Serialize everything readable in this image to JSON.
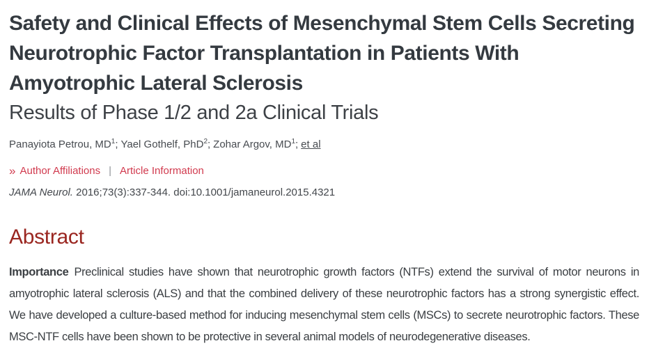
{
  "page": {
    "title": "Safety and Clinical Effects of Mesenchymal Stem Cells Secreting Neurotrophic Factor Transplantation in Patients With Amyotrophic Lateral Sclerosis",
    "subtitle": "Results of Phase 1/2 and 2a Clinical Trials"
  },
  "authors": {
    "list": [
      {
        "name": "Panayiota Petrou, MD",
        "sup": "1"
      },
      {
        "name": "Yael Gothelf, PhD",
        "sup": "2"
      },
      {
        "name": "Zohar Argov, MD",
        "sup": "1"
      }
    ],
    "separator": ";",
    "et_al": "et al"
  },
  "links": {
    "chevron": "»",
    "author_affiliations": "Author Affiliations",
    "separator": "|",
    "article_information": "Article Information"
  },
  "citation": {
    "journal": "JAMA Neurol.",
    "details": "2016;73(3):337-344. doi:10.1001/jamaneurol.2015.4321"
  },
  "abstract": {
    "heading": "Abstract",
    "importance_label": "Importance",
    "importance_text": "Preclinical studies have shown that neurotrophic growth factors (NTFs) extend the survival of motor neurons in amyotrophic lateral sclerosis (ALS) and that the combined delivery of these neurotrophic factors has a strong synergistic effect. We have developed a culture-based method for inducing mesenchymal stem cells (MSCs) to secrete neurotrophic factors. These MSC-NTF cells have been shown to be protective in several animal models of neurodegenerative diseases."
  },
  "colors": {
    "link_red": "#d13a4e",
    "heading_maroon": "#9a2620",
    "title_dark": "#343a40",
    "body_text": "#3a3e42"
  }
}
